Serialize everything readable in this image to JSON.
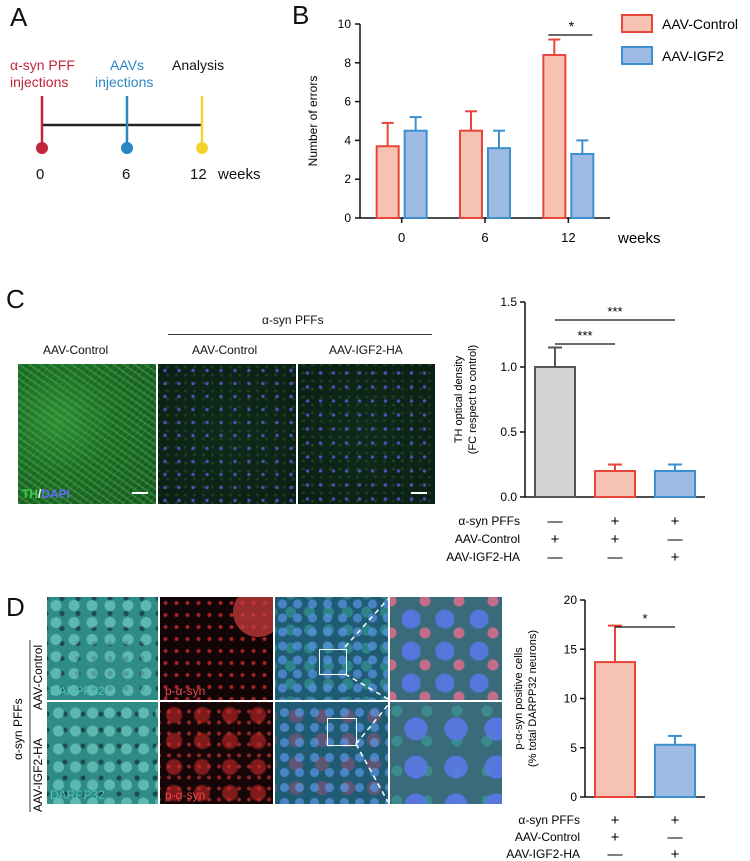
{
  "panels": {
    "a": "A",
    "b": "B",
    "c": "C",
    "d": "D"
  },
  "timeline": {
    "events": [
      {
        "label1": "α-syn PFF",
        "label2": "injections",
        "time": "0",
        "color": "#c0253c"
      },
      {
        "label1": "AAVs",
        "label2": "injections",
        "time": "6",
        "color": "#2a86c3"
      },
      {
        "label1": "Analysis",
        "label2": "",
        "time": "12",
        "color": "#f2d32e"
      }
    ],
    "unit": "weeks"
  },
  "colors": {
    "control": "#f6c2b1",
    "control_edge": "#e8463a",
    "igf2": "#9dbbe3",
    "igf2_edge": "#3d8fcf",
    "grey": "#d3d4d6"
  },
  "figure_c": {
    "group_label": "α-syn PFFs",
    "col_labels": [
      "AAV-Control",
      "AAV-Control",
      "AAV-IGF2-HA"
    ],
    "stain_th": "TH",
    "stain_sep": "/",
    "stain_dapi": "DAPI"
  },
  "figure_d": {
    "row_group": "α-syn PFFs",
    "row_labels": [
      "AAV-Control",
      "AAV-IGF2-HA"
    ],
    "stain_darpp": "DARPP32",
    "stain_psyn": "p-α-syn"
  },
  "chart_data": [
    {
      "type": "bar",
      "categories": [
        "0",
        "6",
        "12"
      ],
      "xlabel": "weeks",
      "ylabel": "Number of errors",
      "ylim": [
        0,
        10
      ],
      "yticks": [
        "0",
        "2",
        "4",
        "6",
        "8",
        "10"
      ],
      "series": [
        {
          "name": "AAV-Control",
          "values": [
            3.7,
            4.5,
            8.4
          ],
          "errors": [
            1.2,
            1.0,
            0.8
          ]
        },
        {
          "name": "AAV-IGF2",
          "values": [
            4.5,
            3.6,
            3.3
          ],
          "errors": [
            0.7,
            0.9,
            0.7
          ]
        }
      ],
      "annotations": [
        {
          "text": "*",
          "between": [
            "12:AAV-Control",
            "12:AAV-IGF2"
          ]
        }
      ],
      "legend": "top-right"
    },
    {
      "type": "bar",
      "ylabel": "TH optical density",
      "ylabel2": "(FC respect to control)",
      "ylim": [
        0,
        1.5
      ],
      "yticks": [
        "0.0",
        "0.5",
        "1.0",
        "1.5"
      ],
      "bars": [
        {
          "value": 1.0,
          "error": 0.15,
          "color": "#d3d4d6",
          "edge": "#555555"
        },
        {
          "value": 0.2,
          "error": 0.05,
          "color": "#f6c2b1",
          "edge": "#e8463a"
        },
        {
          "value": 0.2,
          "error": 0.05,
          "color": "#9dbbe3",
          "edge": "#3d8fcf"
        }
      ],
      "annotations": [
        {
          "text": "***",
          "between": [
            0,
            1
          ]
        },
        {
          "text": "***",
          "between": [
            0,
            2
          ]
        }
      ],
      "conditions": [
        {
          "name": "α-syn PFFs",
          "values": [
            "—",
            "+",
            "+"
          ]
        },
        {
          "name": "AAV-Control",
          "values": [
            "+",
            "+",
            "—"
          ]
        },
        {
          "name": "AAV-IGF2-HA",
          "values": [
            "—",
            "—",
            "+"
          ]
        }
      ]
    },
    {
      "type": "bar",
      "ylabel": "p-α-syn positive cells",
      "ylabel2": "(% total DARPP32 neurons)",
      "ylim": [
        0,
        20
      ],
      "yticks": [
        "0",
        "5",
        "10",
        "15",
        "20"
      ],
      "bars": [
        {
          "value": 13.7,
          "error": 3.7,
          "color": "#f6c2b1",
          "edge": "#e8463a"
        },
        {
          "value": 5.3,
          "error": 0.9,
          "color": "#9dbbe3",
          "edge": "#3d8fcf"
        }
      ],
      "annotations": [
        {
          "text": "*",
          "between": [
            0,
            1
          ]
        }
      ],
      "conditions": [
        {
          "name": "α-syn PFFs",
          "values": [
            "+",
            "+"
          ]
        },
        {
          "name": "AAV-Control",
          "values": [
            "+",
            "—"
          ]
        },
        {
          "name": "AAV-IGF2-HA",
          "values": [
            "—",
            "+"
          ]
        }
      ]
    }
  ]
}
